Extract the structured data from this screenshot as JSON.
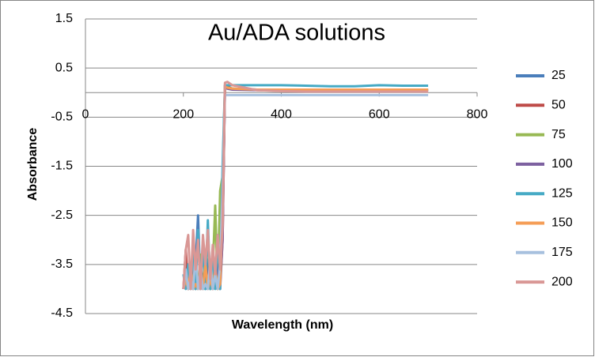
{
  "chart_data": {
    "type": "line",
    "title": "Au/ADA solutions",
    "xlabel": "Wavelength (nm)",
    "ylabel": "Absorbance",
    "x": [
      200,
      205,
      210,
      215,
      220,
      225,
      230,
      235,
      240,
      245,
      250,
      255,
      260,
      265,
      270,
      275,
      280,
      285,
      290,
      300,
      350,
      400,
      450,
      500,
      550,
      600,
      650,
      700
    ],
    "xlim": [
      0,
      800
    ],
    "xticks": [
      0,
      200,
      400,
      600,
      800
    ],
    "ylim": [
      -4.5,
      1.5
    ],
    "yticks": [
      1.5,
      0.5,
      -0.5,
      -1.5,
      -2.5,
      -3.5,
      -4.5
    ],
    "grid": true,
    "legend": "right",
    "series": [
      {
        "name": "25",
        "color": "#4a7ebb",
        "values": [
          -4,
          -3.6,
          -4,
          -3.8,
          -4,
          -3.5,
          -2.5,
          -4,
          -3.7,
          -4,
          -3.4,
          -4,
          -3.9,
          -3.6,
          -4,
          -3.8,
          -2.8,
          0.1,
          0.1,
          0.08,
          0.06,
          0.05,
          0.05,
          0.05,
          0.05,
          0.05,
          0.05,
          0.05
        ]
      },
      {
        "name": "50",
        "color": "#be4b48",
        "values": [
          -4,
          -3.2,
          -4,
          -3.9,
          -3.6,
          -4,
          -3.7,
          -3.9,
          -4,
          -3.5,
          -4,
          -3.8,
          -4,
          -3.6,
          -4,
          -3.9,
          -3,
          0.15,
          0.12,
          0.08,
          0.05,
          0.04,
          0.04,
          0.04,
          0.04,
          0.04,
          0.04,
          0.04
        ]
      },
      {
        "name": "75",
        "color": "#98b954",
        "values": [
          -4,
          -3.8,
          -4,
          -3.5,
          -4,
          -3.7,
          -4,
          -3.3,
          -4,
          -3.8,
          -2.8,
          -4,
          -3.6,
          -2.3,
          -4,
          -2.0,
          -1.7,
          0.12,
          0.1,
          0.08,
          0.06,
          0.06,
          0.06,
          0.06,
          0.06,
          0.06,
          0.06,
          0.06
        ]
      },
      {
        "name": "100",
        "color": "#7d60a0",
        "values": [
          -4,
          -3.7,
          -4,
          -3.9,
          -4,
          -3.6,
          -4,
          -3.8,
          -4,
          -3.4,
          -4,
          -3.7,
          -4,
          -3.9,
          -3.5,
          -4,
          -3,
          0.1,
          0.08,
          0.06,
          0.05,
          0.05,
          0.05,
          0.05,
          0.05,
          0.05,
          0.05,
          0.05
        ]
      },
      {
        "name": "125",
        "color": "#46aac5",
        "values": [
          -3.7,
          -4,
          -3.5,
          -4,
          -3.2,
          -4,
          -2.8,
          -4,
          -3.1,
          -4,
          -2.6,
          -4,
          -3.3,
          -4,
          -2.9,
          -4,
          -1.5,
          0.15,
          0.15,
          0.15,
          0.15,
          0.15,
          0.14,
          0.13,
          0.13,
          0.15,
          0.14,
          0.14
        ]
      },
      {
        "name": "150",
        "color": "#f59d56",
        "values": [
          -4,
          -3.8,
          -4,
          -3.6,
          -4,
          -3.9,
          -4,
          -3.7,
          -4,
          -3.5,
          -4,
          -3.8,
          -4,
          -3.6,
          -4,
          -3.9,
          -2.5,
          0.12,
          0.1,
          0.08,
          0.06,
          0.06,
          0.06,
          0.06,
          0.06,
          0.06,
          0.06,
          0.06
        ]
      },
      {
        "name": "175",
        "color": "#a7c0de",
        "values": [
          -4,
          -3.6,
          -4,
          -3.8,
          -4,
          -3.3,
          -4,
          -3.6,
          -4,
          -3.9,
          -4,
          -3.4,
          -4,
          -3.7,
          -4,
          -3.5,
          -2,
          -0.05,
          -0.05,
          -0.05,
          -0.05,
          -0.05,
          -0.05,
          -0.05,
          -0.05,
          -0.05,
          -0.05,
          -0.05
        ]
      },
      {
        "name": "200",
        "color": "#d99795",
        "values": [
          -4,
          -3.2,
          -2.9,
          -4,
          -2.8,
          -3.6,
          -3.0,
          -4,
          -2.9,
          -3.5,
          -2.8,
          -3.8,
          -3.1,
          -3.7,
          -2.9,
          -3.6,
          -2.7,
          0.2,
          0.22,
          0.15,
          0.05,
          0.03,
          0.02,
          0.02,
          0.02,
          0.02,
          0.02,
          0.02
        ]
      }
    ]
  }
}
